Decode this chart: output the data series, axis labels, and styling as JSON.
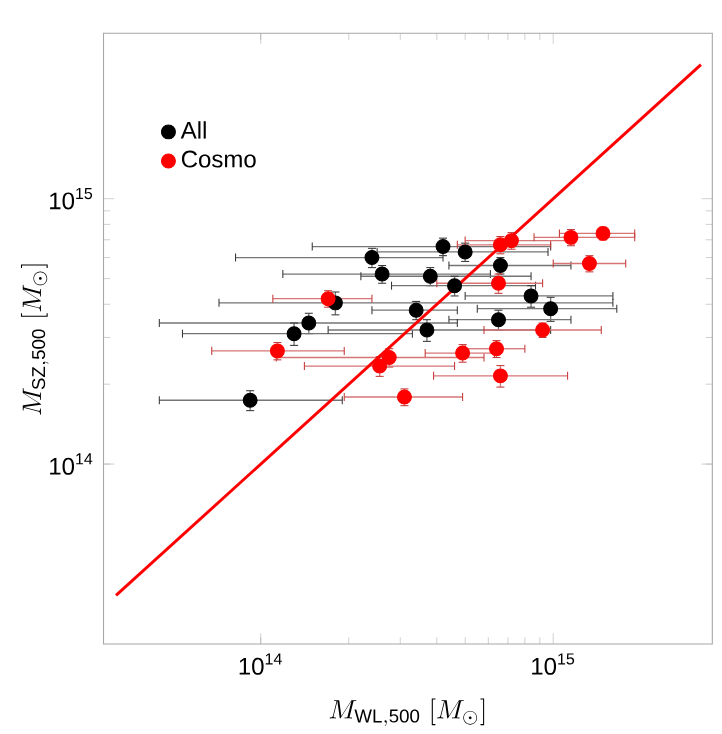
{
  "chart_data": {
    "type": "scatter",
    "xlabel": "M_{\\mathrm{WL,500}}\\ [M_{\\odot}]",
    "ylabel": "M_{\\mathrm{SZ,500}}\\ [M_{\\odot}]",
    "log": "xy",
    "xlim": [
      29000000000000.0,
      3500000000000000.0
    ],
    "ylim": [
      21000000000000.0,
      4200000000000000.0
    ],
    "xticks": [
      {
        "value": 100000000000000.0,
        "label": "10$^{14}$"
      },
      {
        "value": 1000000000000000.0,
        "label": "10$^{15}$"
      }
    ],
    "yticks": [
      {
        "value": 100000000000000.0,
        "label": "10$^{14}$"
      },
      {
        "value": 1000000000000000.0,
        "label": "10$^{15}$"
      }
    ],
    "legend": "top left",
    "grid": false,
    "series": [
      {
        "name": "All",
        "color": "#000000",
        "marker": "circle",
        "x": [
          240000000000000.0,
          420000000000000.0,
          500000000000000.0,
          660000000000000.0,
          260000000000000.0,
          380000000000000.0,
          460000000000000.0,
          180000000000000.0,
          840000000000000.0,
          980000000000000.0,
          340000000000000.0,
          650000000000000.0,
          146000000000000.0,
          130000000000000.0,
          370000000000000.0,
          92000000000000.0
        ],
        "values": [
          600000000000000.0,
          660000000000000.0,
          630000000000000.0,
          560000000000000.0,
          520000000000000.0,
          510000000000000.0,
          470000000000000.0,
          405000000000000.0,
          430000000000000.0,
          385000000000000.0,
          380000000000000.0,
          350000000000000.0,
          340000000000000.0,
          310000000000000.0,
          320000000000000.0,
          174000000000000.0
        ],
        "errors": [
          50000000000000.0,
          50000000000000.0,
          50000000000000.0,
          40000000000000.0,
          40000000000000.0,
          40000000000000.0,
          40000000000000.0,
          40000000000000.0,
          40000000000000.0,
          40000000000000.0,
          30000000000000.0,
          30000000000000.0,
          30000000000000.0,
          30000000000000.0,
          30000000000000.0,
          15000000000000.0
        ],
        "xerrors": [
          [
            82000000000000.0,
            420000000000000.0
          ],
          [
            150000000000000.0,
            980000000000000.0
          ],
          [
            250000000000000.0,
            960000000000000.0
          ],
          [
            440000000000000.0,
            1150000000000000.0
          ],
          [
            119000000000000.0,
            610000000000000.0
          ],
          [
            220000000000000.0,
            840000000000000.0
          ],
          [
            280000000000000.0,
            870000000000000.0
          ],
          [
            72000000000000.0,
            1600000000000000.0
          ],
          [
            500000000000000.0,
            1600000000000000.0
          ],
          [
            550000000000000.0,
            1650000000000000.0
          ],
          [
            240000000000000.0,
            470000000000000.0
          ],
          [
            440000000000000.0,
            1150000000000000.0
          ],
          [
            45000000000000.0,
            470000000000000.0
          ],
          [
            54000000000000.0,
            330000000000000.0
          ],
          [
            170000000000000.0,
            980000000000000.0
          ],
          [
            45000000000000.0,
            190000000000000.0
          ]
        ]
      },
      {
        "name": "Cosmo",
        "color": "#ff0000",
        "marker": "circle",
        "x": [
          660000000000000.0,
          720000000000000.0,
          1150000000000000.0,
          1480000000000000.0,
          1330000000000000.0,
          650000000000000.0,
          170000000000000.0,
          920000000000000.0,
          114000000000000.0,
          275000000000000.0,
          255000000000000.0,
          490000000000000.0,
          640000000000000.0,
          660000000000000.0,
          310000000000000.0
        ],
        "values": [
          670000000000000.0,
          695000000000000.0,
          715000000000000.0,
          740000000000000.0,
          570000000000000.0,
          480000000000000.0,
          420000000000000.0,
          320000000000000.0,
          267000000000000.0,
          252000000000000.0,
          234000000000000.0,
          262000000000000.0,
          272000000000000.0,
          215000000000000.0,
          179000000000000.0
        ],
        "errors": [
          50000000000000.0,
          50000000000000.0,
          50000000000000.0,
          40000000000000.0,
          40000000000000.0,
          40000000000000.0,
          30000000000000.0,
          20000000000000.0,
          20000000000000.0,
          20000000000000.0,
          20000000000000.0,
          20000000000000.0,
          20000000000000.0,
          20000000000000.0,
          13000000000000.0
        ],
        "xerrors": [
          [
            470000000000000.0,
            980000000000000.0
          ],
          [
            500000000000000.0,
            1180000000000000.0
          ],
          [
            860000000000000.0,
            1900000000000000.0
          ],
          [
            1050000000000000.0,
            1900000000000000.0
          ],
          [
            1000000000000000.0,
            1770000000000000.0
          ],
          [
            400000000000000.0,
            920000000000000.0
          ],
          [
            110000000000000.0,
            240000000000000.0
          ],
          [
            580000000000000.0,
            1460000000000000.0
          ],
          [
            68000000000000.0,
            193000000000000.0
          ],
          [
            113000000000000.0,
            580000000000000.0
          ],
          [
            141000000000000.0,
            460000000000000.0
          ],
          [
            365000000000000.0,
            630000000000000.0
          ],
          [
            500000000000000.0,
            800000000000000.0
          ],
          [
            390000000000000.0,
            1120000000000000.0
          ],
          [
            193000000000000.0,
            490000000000000.0
          ]
        ]
      },
      {
        "type": "line",
        "color": "#ff0000",
        "line_style": "solid",
        "marker": "none",
        "x": [
          32000000000000.0,
          3200000000000000.0
        ],
        "values": [
          32000000000000.0,
          3200000000000000.0
        ]
      }
    ]
  }
}
